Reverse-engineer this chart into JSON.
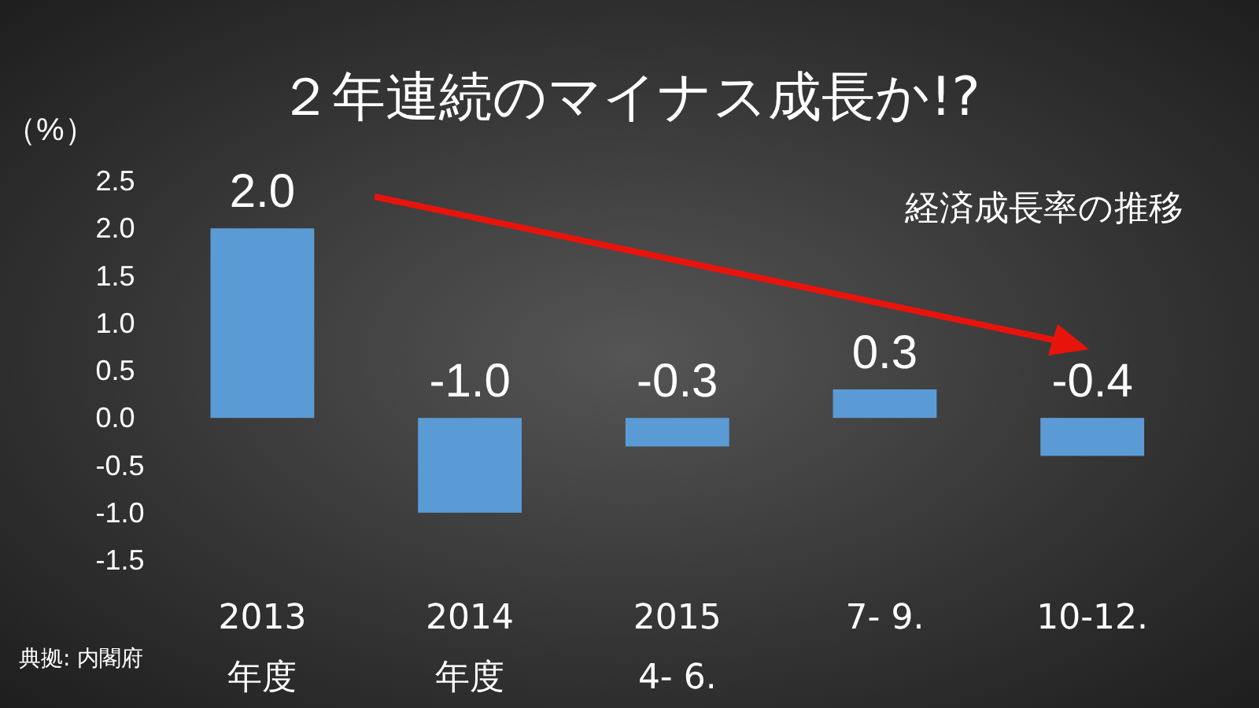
{
  "chart_data": {
    "type": "bar",
    "title": "２年連続のマイナス成長か!?",
    "ylabel": "（%）",
    "categories": [
      "2013\n年度",
      "2014\n年度",
      "2015\n4- 6.",
      "7- 9.",
      "10-12."
    ],
    "values": [
      2.0,
      -1.0,
      -0.3,
      0.3,
      -0.4
    ],
    "value_labels": [
      "2.0",
      "-1.0",
      "-0.3",
      "0.3",
      "-0.4"
    ],
    "color": "#5b9bd5",
    "ylim": [
      -1.5,
      2.5
    ],
    "yticks": [
      {
        "value": 2.5,
        "label": "2.5"
      },
      {
        "value": 2,
        "label": "2.0"
      },
      {
        "value": 1.5,
        "label": "1.5"
      },
      {
        "value": 1,
        "label": "1.0"
      },
      {
        "value": 0.5,
        "label": "0.5"
      },
      {
        "value": 0,
        "label": "0.0"
      },
      {
        "value": -0.5,
        "label": "-0.5"
      },
      {
        "value": -1,
        "label": "-1.0"
      },
      {
        "value": -1.5,
        "label": "-1.5"
      }
    ],
    "grid": false,
    "annotations": [
      "経済成長率の推移",
      "典拠: 内閣府"
    ]
  }
}
